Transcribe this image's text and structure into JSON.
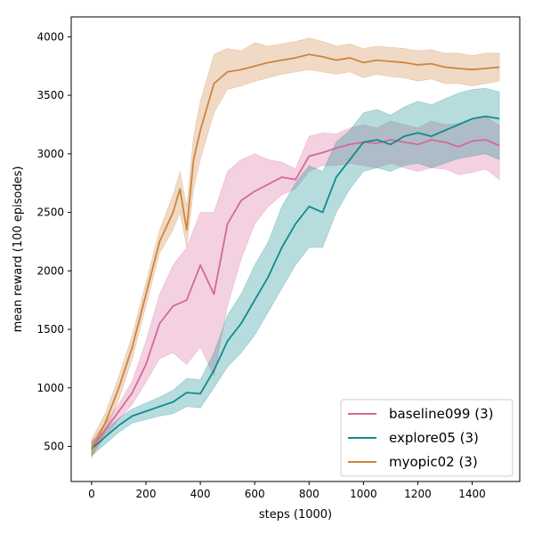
{
  "chart_data": {
    "type": "line",
    "xlabel": "steps (1000)",
    "ylabel": "mean reward (100 episodes)",
    "xlim": [
      -75,
      1575
    ],
    "ylim": [
      200,
      4170
    ],
    "xticks": [
      0,
      200,
      400,
      600,
      800,
      1000,
      1200,
      1400
    ],
    "yticks": [
      500,
      1000,
      1500,
      2000,
      2500,
      3000,
      3500,
      4000
    ],
    "grid": false,
    "legend_position": "lower right",
    "series": [
      {
        "name": "baseline099 (3)",
        "color": "#d6679a",
        "x": [
          0,
          50,
          100,
          150,
          200,
          250,
          300,
          350,
          400,
          450,
          500,
          550,
          600,
          650,
          700,
          750,
          800,
          850,
          900,
          950,
          1000,
          1050,
          1100,
          1150,
          1200,
          1250,
          1300,
          1350,
          1400,
          1450,
          1500
        ],
        "y": [
          480,
          640,
          800,
          960,
          1200,
          1550,
          1700,
          1750,
          2050,
          1800,
          2400,
          2600,
          2680,
          2740,
          2800,
          2780,
          2980,
          3010,
          3050,
          3080,
          3100,
          3090,
          3120,
          3100,
          3080,
          3120,
          3100,
          3060,
          3110,
          3120,
          3070
        ],
        "lower": [
          420,
          580,
          730,
          860,
          1050,
          1250,
          1300,
          1200,
          1350,
          1100,
          1700,
          2100,
          2400,
          2550,
          2650,
          2700,
          2850,
          2900,
          2900,
          2920,
          2900,
          2880,
          2920,
          2880,
          2850,
          2880,
          2870,
          2820,
          2840,
          2870,
          2780
        ],
        "upper": [
          540,
          700,
          860,
          1060,
          1400,
          1800,
          2050,
          2200,
          2500,
          2500,
          2850,
          2950,
          3000,
          2950,
          2930,
          2870,
          3150,
          3180,
          3170,
          3220,
          3250,
          3220,
          3280,
          3250,
          3220,
          3280,
          3250,
          3260,
          3300,
          3320,
          3240
        ]
      },
      {
        "name": "explore05 (3)",
        "color": "#0f8b8d",
        "x": [
          0,
          50,
          100,
          150,
          200,
          250,
          300,
          350,
          400,
          450,
          500,
          550,
          600,
          650,
          700,
          750,
          800,
          850,
          900,
          950,
          1000,
          1050,
          1100,
          1150,
          1200,
          1250,
          1300,
          1350,
          1400,
          1450,
          1500
        ],
        "y": [
          480,
          580,
          680,
          760,
          800,
          840,
          880,
          960,
          950,
          1150,
          1400,
          1550,
          1750,
          1950,
          2200,
          2400,
          2550,
          2500,
          2800,
          2950,
          3100,
          3120,
          3080,
          3150,
          3180,
          3150,
          3200,
          3250,
          3300,
          3320,
          3300
        ],
        "lower": [
          420,
          520,
          620,
          700,
          730,
          760,
          780,
          840,
          830,
          1000,
          1180,
          1300,
          1450,
          1650,
          1850,
          2050,
          2200,
          2200,
          2500,
          2700,
          2850,
          2880,
          2850,
          2900,
          2920,
          2880,
          2920,
          2960,
          2980,
          3000,
          2950
        ],
        "upper": [
          540,
          640,
          740,
          820,
          870,
          920,
          980,
          1080,
          1070,
          1300,
          1620,
          1800,
          2050,
          2250,
          2550,
          2750,
          2900,
          2850,
          3100,
          3200,
          3350,
          3380,
          3330,
          3400,
          3450,
          3420,
          3470,
          3520,
          3550,
          3560,
          3530
        ]
      },
      {
        "name": "myopic02 (3)",
        "color": "#cd853f",
        "x": [
          0,
          50,
          100,
          150,
          200,
          250,
          300,
          325,
          350,
          375,
          400,
          450,
          500,
          550,
          600,
          650,
          700,
          750,
          800,
          850,
          900,
          950,
          1000,
          1050,
          1100,
          1150,
          1200,
          1250,
          1300,
          1350,
          1400,
          1450,
          1500
        ],
        "y": [
          480,
          700,
          1000,
          1350,
          1800,
          2250,
          2500,
          2700,
          2350,
          2950,
          3200,
          3600,
          3700,
          3720,
          3750,
          3780,
          3800,
          3820,
          3850,
          3830,
          3800,
          3820,
          3780,
          3800,
          3790,
          3780,
          3760,
          3770,
          3740,
          3730,
          3720,
          3730,
          3740
        ],
        "lower": [
          400,
          620,
          900,
          1250,
          1700,
          2150,
          2350,
          2500,
          2200,
          2700,
          2950,
          3350,
          3550,
          3580,
          3620,
          3650,
          3680,
          3700,
          3720,
          3700,
          3680,
          3700,
          3650,
          3680,
          3660,
          3650,
          3620,
          3640,
          3600,
          3600,
          3580,
          3600,
          3620
        ],
        "upper": [
          560,
          780,
          1100,
          1450,
          1900,
          2350,
          2650,
          2850,
          2550,
          3150,
          3450,
          3850,
          3900,
          3880,
          3950,
          3920,
          3940,
          3960,
          3990,
          3960,
          3920,
          3940,
          3900,
          3920,
          3910,
          3900,
          3880,
          3890,
          3860,
          3860,
          3840,
          3860,
          3860
        ]
      }
    ]
  }
}
